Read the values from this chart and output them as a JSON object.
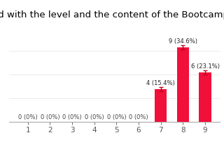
{
  "title": "ed with the level and the content of the Bootcamp",
  "categories": [
    1,
    2,
    3,
    4,
    5,
    6,
    7,
    8,
    9
  ],
  "values": [
    0,
    0,
    0,
    0,
    0,
    0,
    4,
    9,
    6
  ],
  "percentages": [
    "0%",
    "0%",
    "0%",
    "0%",
    "0%",
    "0%",
    "15.4%",
    "34.6%",
    "23.1%"
  ],
  "bar_color": "#f0103a",
  "background_color": "#ffffff",
  "title_fontsize": 9.5,
  "label_fontsize": 6.0,
  "tick_fontsize": 7.5,
  "ylim": [
    0,
    11.5
  ],
  "error_bar_color": "#c00020",
  "axis_color": "#aaaaaa",
  "grid_color": "#e8e8e8"
}
